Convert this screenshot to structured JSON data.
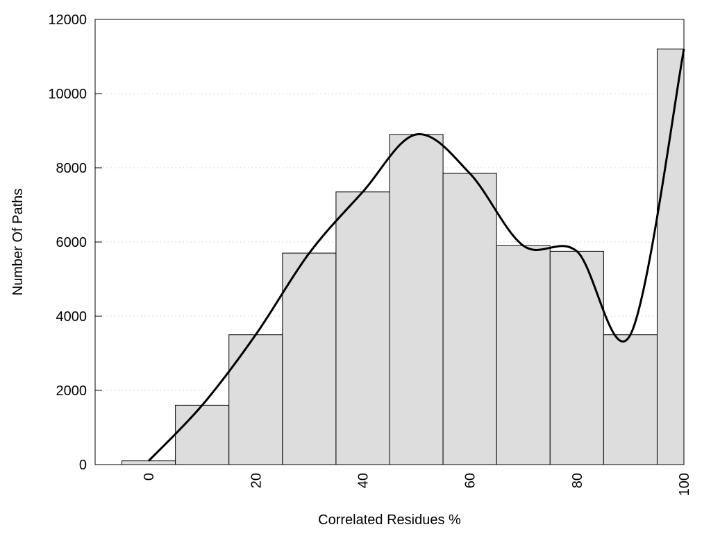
{
  "chart_data": {
    "type": "bar",
    "title": "",
    "xlabel": "Correlated Residues %",
    "ylabel": "Number Of Paths",
    "x": [
      0,
      10,
      20,
      30,
      40,
      50,
      60,
      70,
      80,
      90,
      100
    ],
    "values": [
      100,
      1600,
      3500,
      5700,
      7350,
      8900,
      7850,
      5900,
      5750,
      3500,
      11200
    ],
    "bin_width": 10,
    "xlim": [
      -10,
      100
    ],
    "ylim": [
      0,
      12000
    ],
    "xticks": [
      0,
      20,
      40,
      60,
      80,
      100
    ],
    "yticks": [
      0,
      2000,
      4000,
      6000,
      8000,
      10000,
      12000
    ],
    "grid": "horizontal dotted",
    "overlay": {
      "type": "smooth line",
      "through": "bar values"
    },
    "colors": {
      "bar_fill": "#dddddd",
      "bar_edge": "#000000",
      "line": "#000000",
      "grid": "#cccccc"
    }
  }
}
